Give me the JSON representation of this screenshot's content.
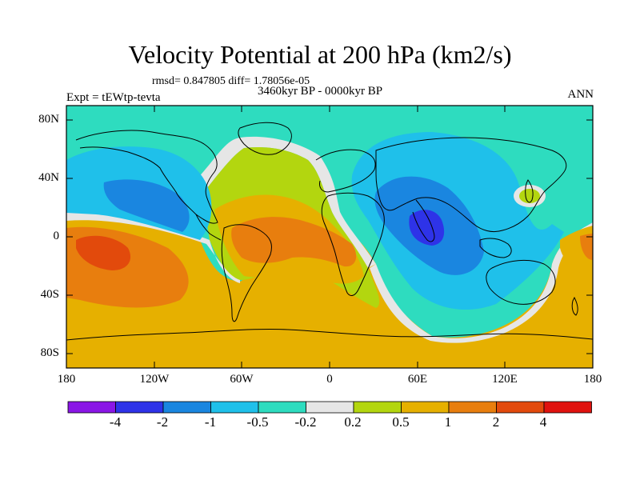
{
  "title": "Velocity Potential at 200 hPa (km2/s)",
  "stats_line": "rmsd= 0.847805 diff= 1.78056e-05",
  "period": "3460kyr BP - 0000kyr BP",
  "experiment": "Expt = tEWtp-tevta",
  "season": "ANN",
  "lat_ticks": [
    "80N",
    "40N",
    "0",
    "40S",
    "80S"
  ],
  "lon_ticks": [
    "180",
    "120W",
    "60W",
    "0",
    "60E",
    "120E",
    "180"
  ],
  "colorbar": {
    "labels": [
      "-4",
      "-2",
      "-1",
      "-0.5",
      "-0.2",
      "0.2",
      "0.5",
      "1",
      "2",
      "4"
    ],
    "colors": [
      "#8a16e6",
      "#2e33e8",
      "#1a86e0",
      "#1fc0ea",
      "#2edcbf",
      "#e6e6e6",
      "#b3d60f",
      "#e6b000",
      "#e87e0e",
      "#e24a0c",
      "#e0120e"
    ]
  },
  "map_colors": {
    "ocean_base": "#2edcbf",
    "coast": "#000000"
  }
}
